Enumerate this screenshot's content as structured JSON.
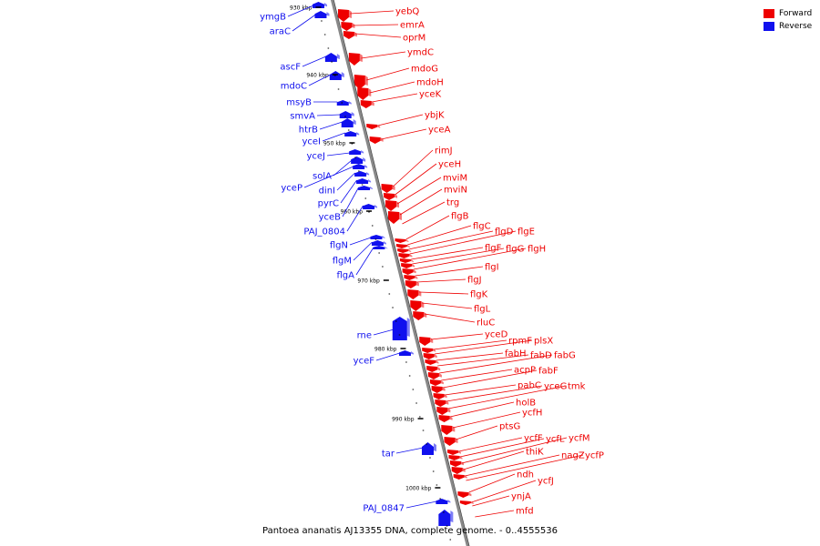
{
  "colors": {
    "forward": "#ee0000",
    "reverse": "#1010ee",
    "axis": "#888888"
  },
  "legend": [
    {
      "label": "Forward",
      "color": "#ee0000"
    },
    {
      "label": "Reverse",
      "color": "#1010ee"
    }
  ],
  "caption": "Pantoea ananatis AJ13355 DNA, complete genome. - 0..4555536",
  "axis": {
    "ticks": [
      "930 kbp",
      "940 kbp",
      "950 kbp",
      "960 kbp",
      "970 kbp",
      "980 kbp",
      "990 kbp",
      "1000 kbp"
    ]
  },
  "forward_genes": [
    {
      "name": "yebQ"
    },
    {
      "name": "emrA"
    },
    {
      "name": "oprM"
    },
    {
      "name": "ymdC"
    },
    {
      "name": "mdoG"
    },
    {
      "name": "mdoH"
    },
    {
      "name": "yceK"
    },
    {
      "name": "ybjK"
    },
    {
      "name": "yceA"
    },
    {
      "name": "rimJ"
    },
    {
      "name": "yceH"
    },
    {
      "name": "mviM"
    },
    {
      "name": "mviN"
    },
    {
      "name": "trg"
    },
    {
      "name": "flgB"
    },
    {
      "name": "flgC"
    },
    {
      "name": "flgD"
    },
    {
      "name": "flgE"
    },
    {
      "name": "flgF"
    },
    {
      "name": "flgG"
    },
    {
      "name": "flgH"
    },
    {
      "name": "flgI"
    },
    {
      "name": "flgJ"
    },
    {
      "name": "flgK"
    },
    {
      "name": "flgL"
    },
    {
      "name": "rluC"
    },
    {
      "name": "yceD"
    },
    {
      "name": "rpmF"
    },
    {
      "name": "plsX"
    },
    {
      "name": "fabH"
    },
    {
      "name": "fabD"
    },
    {
      "name": "fabG"
    },
    {
      "name": "acpP"
    },
    {
      "name": "fabF"
    },
    {
      "name": "pabC"
    },
    {
      "name": "yceG"
    },
    {
      "name": "tmk"
    },
    {
      "name": "holB"
    },
    {
      "name": "ycfH"
    },
    {
      "name": "ptsG"
    },
    {
      "name": "ycfF"
    },
    {
      "name": "ycfL"
    },
    {
      "name": "ycfM"
    },
    {
      "name": "thiK"
    },
    {
      "name": "nagZ"
    },
    {
      "name": "ycfP"
    },
    {
      "name": "ndh"
    },
    {
      "name": "ycfJ"
    },
    {
      "name": "ynjA"
    },
    {
      "name": "mfd"
    }
  ],
  "reverse_genes": [
    {
      "name": "ymgB"
    },
    {
      "name": "araC"
    },
    {
      "name": "ascF"
    },
    {
      "name": "mdoC"
    },
    {
      "name": "msyB"
    },
    {
      "name": "smvA"
    },
    {
      "name": "htrB"
    },
    {
      "name": "yceI"
    },
    {
      "name": "yceJ"
    },
    {
      "name": "solA"
    },
    {
      "name": "yceP"
    },
    {
      "name": "dinI"
    },
    {
      "name": "pyrC"
    },
    {
      "name": "yceB"
    },
    {
      "name": "PAJ_0804"
    },
    {
      "name": "flgN"
    },
    {
      "name": "flgM"
    },
    {
      "name": "flgA"
    },
    {
      "name": "rne"
    },
    {
      "name": "yceF"
    },
    {
      "name": "tar"
    },
    {
      "name": "PAJ_0847"
    }
  ]
}
